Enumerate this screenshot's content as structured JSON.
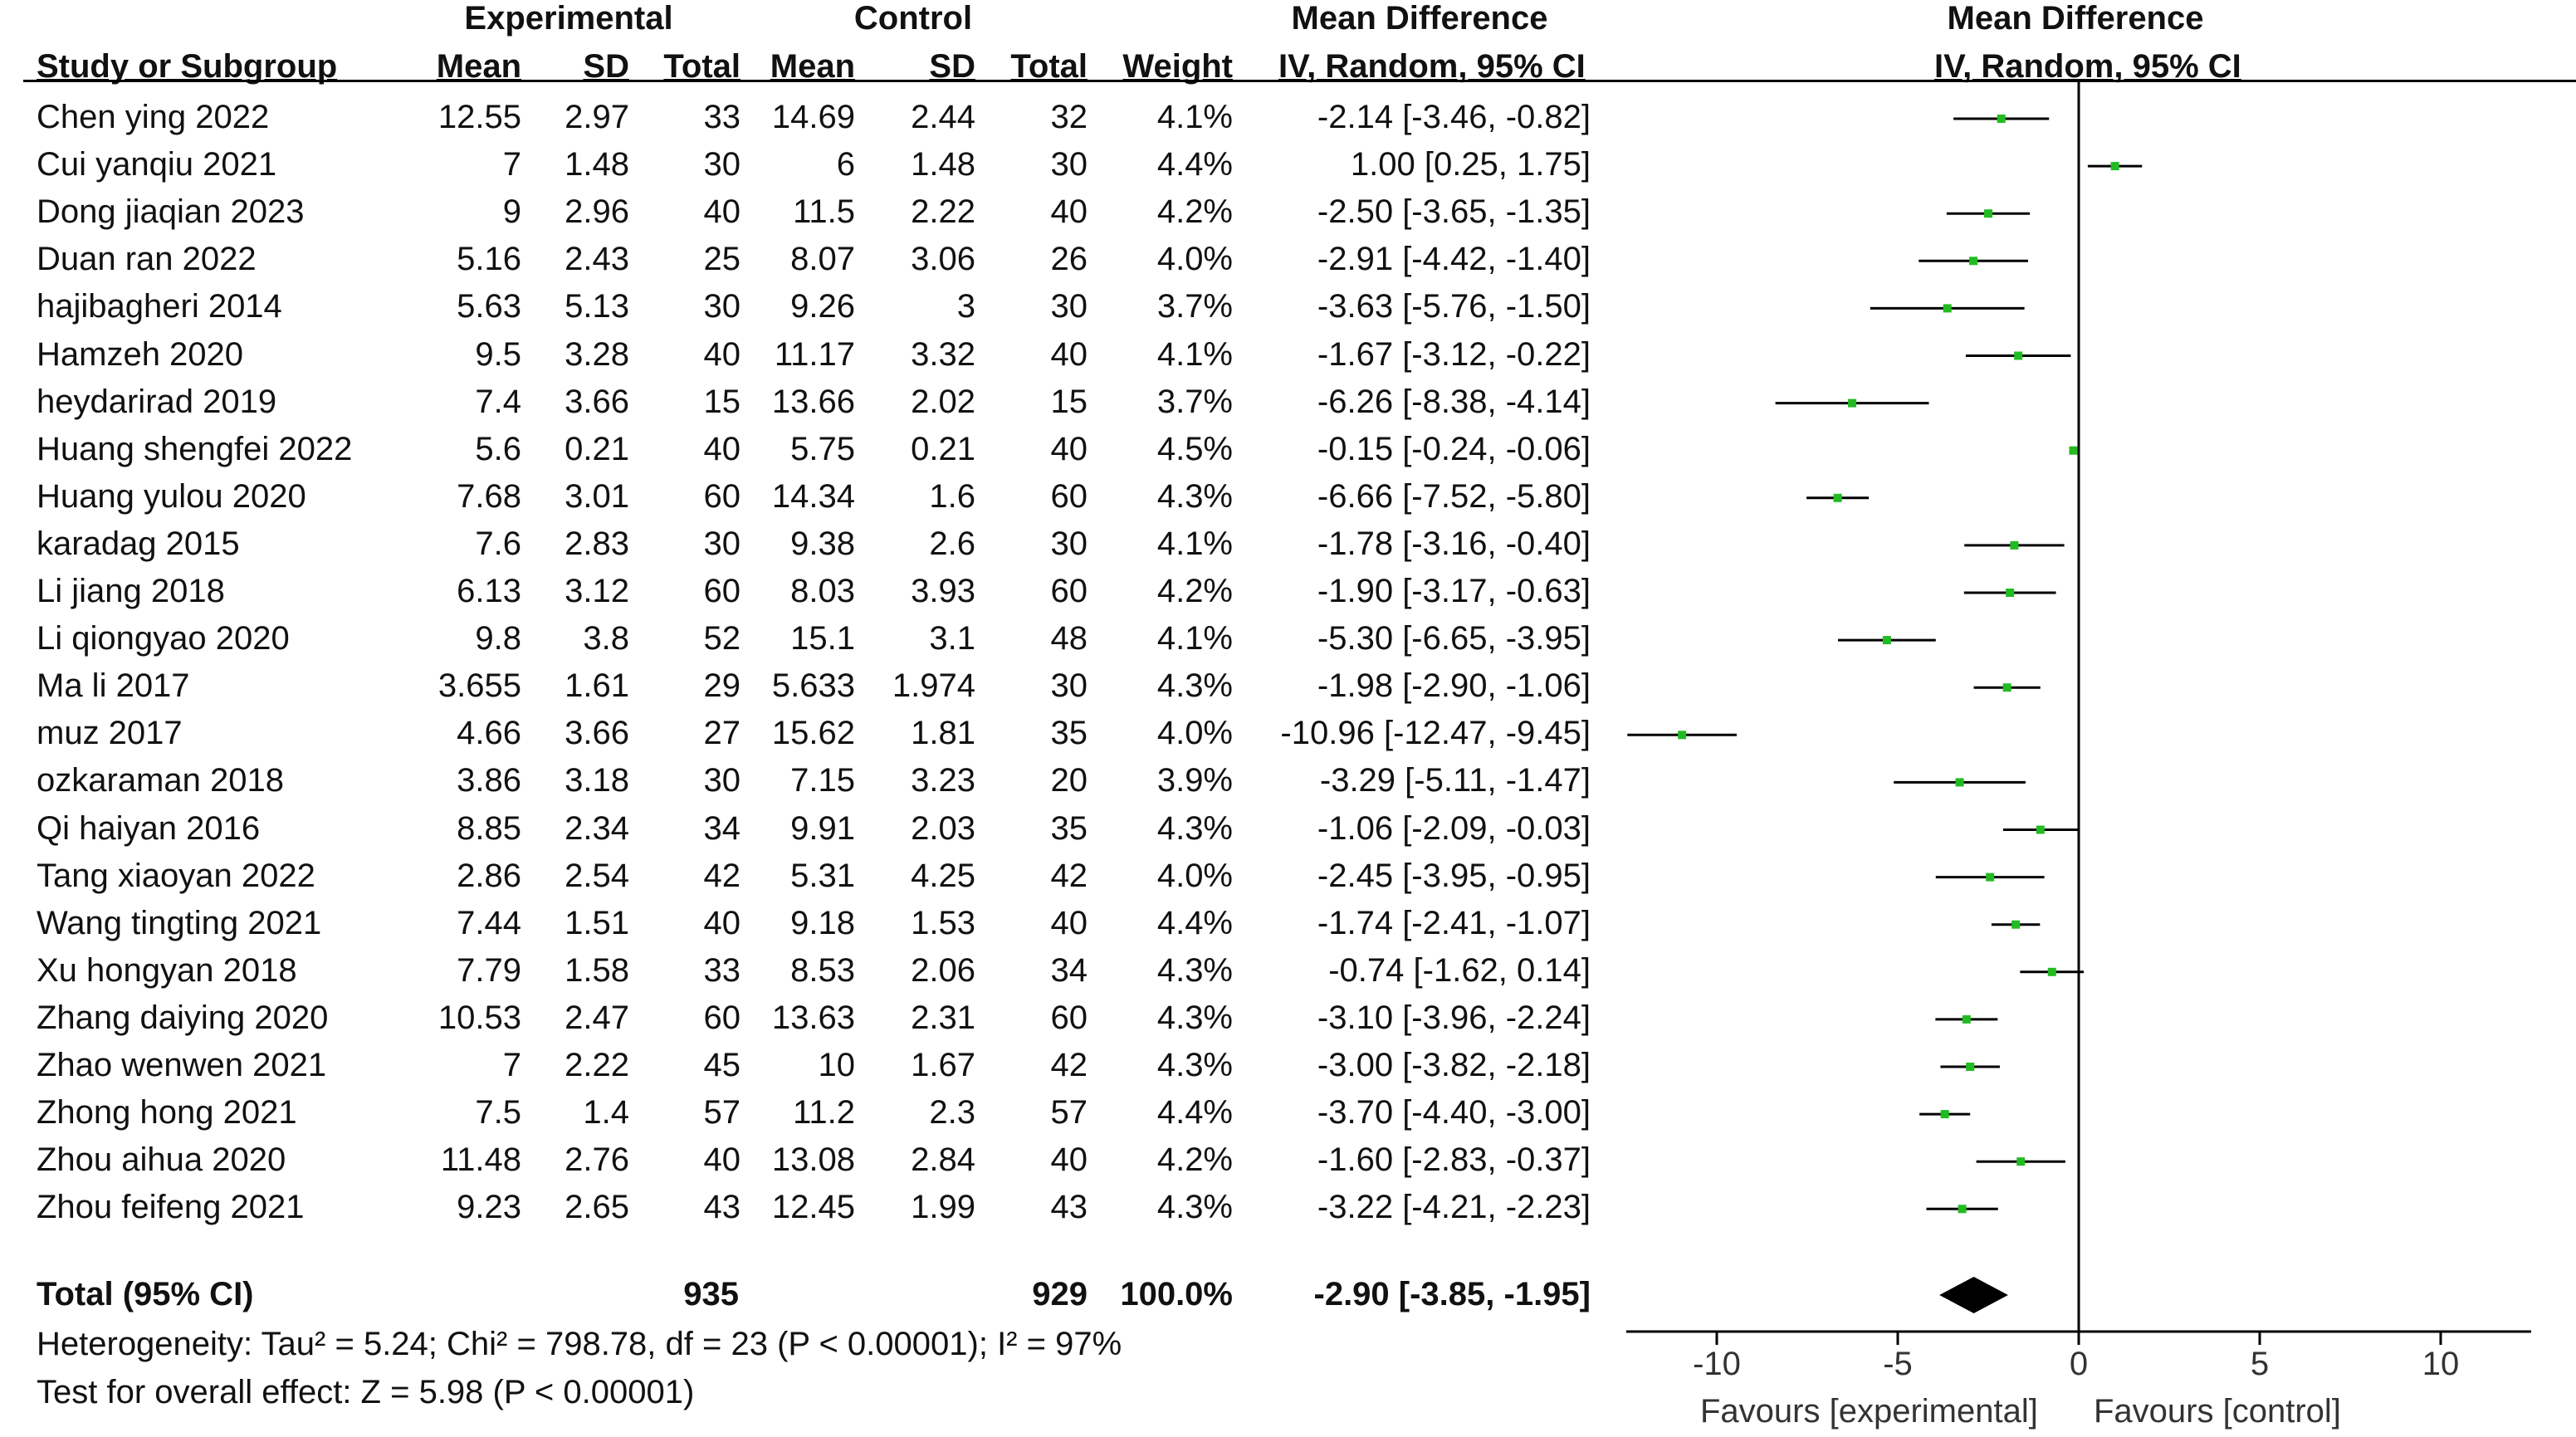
{
  "headers": {
    "experimental": "Experimental",
    "control": "Control",
    "md_left": "Mean Difference",
    "md_right": "Mean Difference",
    "study": "Study or Subgroup",
    "mean_e": "Mean",
    "sd_e": "SD",
    "total_e": "Total",
    "mean_c": "Mean",
    "sd_c": "SD",
    "total_c": "Total",
    "weight": "Weight",
    "method_left": "IV, Random, 95% CI",
    "method_right": "IV, Random, 95% CI"
  },
  "rows": [
    {
      "study": "Chen ying 2022",
      "mean_e": "12.55",
      "sd_e": "2.97",
      "total_e": "33",
      "mean_c": "14.69",
      "sd_c": "2.44",
      "total_c": "32",
      "weight": "4.1%",
      "ci": "-2.14 [-3.46, -0.82]"
    },
    {
      "study": "Cui yanqiu 2021",
      "mean_e": "7",
      "sd_e": "1.48",
      "total_e": "30",
      "mean_c": "6",
      "sd_c": "1.48",
      "total_c": "30",
      "weight": "4.4%",
      "ci": "1.00 [0.25, 1.75]"
    },
    {
      "study": "Dong jiaqian 2023",
      "mean_e": "9",
      "sd_e": "2.96",
      "total_e": "40",
      "mean_c": "11.5",
      "sd_c": "2.22",
      "total_c": "40",
      "weight": "4.2%",
      "ci": "-2.50 [-3.65, -1.35]"
    },
    {
      "study": "Duan ran 2022",
      "mean_e": "5.16",
      "sd_e": "2.43",
      "total_e": "25",
      "mean_c": "8.07",
      "sd_c": "3.06",
      "total_c": "26",
      "weight": "4.0%",
      "ci": "-2.91 [-4.42, -1.40]"
    },
    {
      "study": "hajibagheri 2014",
      "mean_e": "5.63",
      "sd_e": "5.13",
      "total_e": "30",
      "mean_c": "9.26",
      "sd_c": "3",
      "total_c": "30",
      "weight": "3.7%",
      "ci": "-3.63 [-5.76, -1.50]"
    },
    {
      "study": "Hamzeh 2020",
      "mean_e": "9.5",
      "sd_e": "3.28",
      "total_e": "40",
      "mean_c": "11.17",
      "sd_c": "3.32",
      "total_c": "40",
      "weight": "4.1%",
      "ci": "-1.67 [-3.12, -0.22]"
    },
    {
      "study": "heydarirad 2019",
      "mean_e": "7.4",
      "sd_e": "3.66",
      "total_e": "15",
      "mean_c": "13.66",
      "sd_c": "2.02",
      "total_c": "15",
      "weight": "3.7%",
      "ci": "-6.26 [-8.38, -4.14]"
    },
    {
      "study": "Huang shengfei 2022",
      "mean_e": "5.6",
      "sd_e": "0.21",
      "total_e": "40",
      "mean_c": "5.75",
      "sd_c": "0.21",
      "total_c": "40",
      "weight": "4.5%",
      "ci": "-0.15 [-0.24, -0.06]"
    },
    {
      "study": "Huang yulou 2020",
      "mean_e": "7.68",
      "sd_e": "3.01",
      "total_e": "60",
      "mean_c": "14.34",
      "sd_c": "1.6",
      "total_c": "60",
      "weight": "4.3%",
      "ci": "-6.66 [-7.52, -5.80]"
    },
    {
      "study": "karadag 2015",
      "mean_e": "7.6",
      "sd_e": "2.83",
      "total_e": "30",
      "mean_c": "9.38",
      "sd_c": "2.6",
      "total_c": "30",
      "weight": "4.1%",
      "ci": "-1.78 [-3.16, -0.40]"
    },
    {
      "study": "Li jiang 2018",
      "mean_e": "6.13",
      "sd_e": "3.12",
      "total_e": "60",
      "mean_c": "8.03",
      "sd_c": "3.93",
      "total_c": "60",
      "weight": "4.2%",
      "ci": "-1.90 [-3.17, -0.63]"
    },
    {
      "study": "Li qiongyao 2020",
      "mean_e": "9.8",
      "sd_e": "3.8",
      "total_e": "52",
      "mean_c": "15.1",
      "sd_c": "3.1",
      "total_c": "48",
      "weight": "4.1%",
      "ci": "-5.30 [-6.65, -3.95]"
    },
    {
      "study": "Ma li 2017",
      "mean_e": "3.655",
      "sd_e": "1.61",
      "total_e": "29",
      "mean_c": "5.633",
      "sd_c": "1.974",
      "total_c": "30",
      "weight": "4.3%",
      "ci": "-1.98 [-2.90, -1.06]"
    },
    {
      "study": "muz 2017",
      "mean_e": "4.66",
      "sd_e": "3.66",
      "total_e": "27",
      "mean_c": "15.62",
      "sd_c": "1.81",
      "total_c": "35",
      "weight": "4.0%",
      "ci": "-10.96 [-12.47, -9.45]"
    },
    {
      "study": "ozkaraman 2018",
      "mean_e": "3.86",
      "sd_e": "3.18",
      "total_e": "30",
      "mean_c": "7.15",
      "sd_c": "3.23",
      "total_c": "20",
      "weight": "3.9%",
      "ci": "-3.29 [-5.11, -1.47]"
    },
    {
      "study": "Qi haiyan 2016",
      "mean_e": "8.85",
      "sd_e": "2.34",
      "total_e": "34",
      "mean_c": "9.91",
      "sd_c": "2.03",
      "total_c": "35",
      "weight": "4.3%",
      "ci": "-1.06 [-2.09, -0.03]"
    },
    {
      "study": "Tang xiaoyan 2022",
      "mean_e": "2.86",
      "sd_e": "2.54",
      "total_e": "42",
      "mean_c": "5.31",
      "sd_c": "4.25",
      "total_c": "42",
      "weight": "4.0%",
      "ci": "-2.45 [-3.95, -0.95]"
    },
    {
      "study": "Wang tingting 2021",
      "mean_e": "7.44",
      "sd_e": "1.51",
      "total_e": "40",
      "mean_c": "9.18",
      "sd_c": "1.53",
      "total_c": "40",
      "weight": "4.4%",
      "ci": "-1.74 [-2.41, -1.07]"
    },
    {
      "study": "Xu hongyan 2018",
      "mean_e": "7.79",
      "sd_e": "1.58",
      "total_e": "33",
      "mean_c": "8.53",
      "sd_c": "2.06",
      "total_c": "34",
      "weight": "4.3%",
      "ci": "-0.74 [-1.62, 0.14]"
    },
    {
      "study": "Zhang daiying 2020",
      "mean_e": "10.53",
      "sd_e": "2.47",
      "total_e": "60",
      "mean_c": "13.63",
      "sd_c": "2.31",
      "total_c": "60",
      "weight": "4.3%",
      "ci": "-3.10 [-3.96, -2.24]"
    },
    {
      "study": "Zhao wenwen 2021",
      "mean_e": "7",
      "sd_e": "2.22",
      "total_e": "45",
      "mean_c": "10",
      "sd_c": "1.67",
      "total_c": "42",
      "weight": "4.3%",
      "ci": "-3.00 [-3.82, -2.18]"
    },
    {
      "study": "Zhong hong 2021",
      "mean_e": "7.5",
      "sd_e": "1.4",
      "total_e": "57",
      "mean_c": "11.2",
      "sd_c": "2.3",
      "total_c": "57",
      "weight": "4.4%",
      "ci": "-3.70 [-4.40, -3.00]"
    },
    {
      "study": "Zhou aihua 2020",
      "mean_e": "11.48",
      "sd_e": "2.76",
      "total_e": "40",
      "mean_c": "13.08",
      "sd_c": "2.84",
      "total_c": "40",
      "weight": "4.2%",
      "ci": "-1.60 [-2.83, -0.37]"
    },
    {
      "study": "Zhou feifeng 2021",
      "mean_e": "9.23",
      "sd_e": "2.65",
      "total_e": "43",
      "mean_c": "12.45",
      "sd_c": "1.99",
      "total_c": "43",
      "weight": "4.3%",
      "ci": "-3.22 [-4.21, -2.23]"
    }
  ],
  "total": {
    "label": "Total (95% CI)",
    "total_e": "935",
    "total_c": "929",
    "weight": "100.0%",
    "ci": "-2.90 [-3.85, -1.95]"
  },
  "heterogeneity": "Heterogeneity: Tau² = 5.24; Chi² = 798.78, df = 23 (P < 0.00001); I² = 97%",
  "overall_effect": "Test for overall effect: Z = 5.98 (P < 0.00001)",
  "axis": {
    "favours_left": "Favours [experimental]",
    "favours_right": "Favours [control]"
  },
  "colors": {
    "point": "#22bb22",
    "line": "#000000"
  },
  "chart_data": {
    "type": "scatter",
    "xlim": [
      -12.5,
      12.5
    ],
    "xticks": [
      -10,
      -5,
      0,
      5,
      10
    ],
    "xtick_labels": [
      "-10",
      "-5",
      "0",
      "5",
      "10"
    ],
    "null_line": 0,
    "points": [
      {
        "study": "Chen ying 2022",
        "md": -2.14,
        "lo": -3.46,
        "hi": -0.82
      },
      {
        "study": "Cui yanqiu 2021",
        "md": 1.0,
        "lo": 0.25,
        "hi": 1.75
      },
      {
        "study": "Dong jiaqian 2023",
        "md": -2.5,
        "lo": -3.65,
        "hi": -1.35
      },
      {
        "study": "Duan ran 2022",
        "md": -2.91,
        "lo": -4.42,
        "hi": -1.4
      },
      {
        "study": "hajibagheri 2014",
        "md": -3.63,
        "lo": -5.76,
        "hi": -1.5
      },
      {
        "study": "Hamzeh 2020",
        "md": -1.67,
        "lo": -3.12,
        "hi": -0.22
      },
      {
        "study": "heydarirad 2019",
        "md": -6.26,
        "lo": -8.38,
        "hi": -4.14
      },
      {
        "study": "Huang shengfei 2022",
        "md": -0.15,
        "lo": -0.24,
        "hi": -0.06
      },
      {
        "study": "Huang yulou 2020",
        "md": -6.66,
        "lo": -7.52,
        "hi": -5.8
      },
      {
        "study": "karadag 2015",
        "md": -1.78,
        "lo": -3.16,
        "hi": -0.4
      },
      {
        "study": "Li jiang 2018",
        "md": -1.9,
        "lo": -3.17,
        "hi": -0.63
      },
      {
        "study": "Li qiongyao 2020",
        "md": -5.3,
        "lo": -6.65,
        "hi": -3.95
      },
      {
        "study": "Ma li 2017",
        "md": -1.98,
        "lo": -2.9,
        "hi": -1.06
      },
      {
        "study": "muz 2017",
        "md": -10.96,
        "lo": -12.47,
        "hi": -9.45
      },
      {
        "study": "ozkaraman 2018",
        "md": -3.29,
        "lo": -5.11,
        "hi": -1.47
      },
      {
        "study": "Qi haiyan 2016",
        "md": -1.06,
        "lo": -2.09,
        "hi": -0.03
      },
      {
        "study": "Tang xiaoyan 2022",
        "md": -2.45,
        "lo": -3.95,
        "hi": -0.95
      },
      {
        "study": "Wang tingting 2021",
        "md": -1.74,
        "lo": -2.41,
        "hi": -1.07
      },
      {
        "study": "Xu hongyan 2018",
        "md": -0.74,
        "lo": -1.62,
        "hi": 0.14
      },
      {
        "study": "Zhang daiying 2020",
        "md": -3.1,
        "lo": -3.96,
        "hi": -2.24
      },
      {
        "study": "Zhao wenwen 2021",
        "md": -3.0,
        "lo": -3.82,
        "hi": -2.18
      },
      {
        "study": "Zhong hong 2021",
        "md": -3.7,
        "lo": -4.4,
        "hi": -3.0
      },
      {
        "study": "Zhou aihua 2020",
        "md": -1.6,
        "lo": -2.83,
        "hi": -0.37
      },
      {
        "study": "Zhou feifeng 2021",
        "md": -3.22,
        "lo": -4.21,
        "hi": -2.23
      }
    ],
    "pooled": {
      "md": -2.9,
      "lo": -3.85,
      "hi": -1.95
    }
  }
}
